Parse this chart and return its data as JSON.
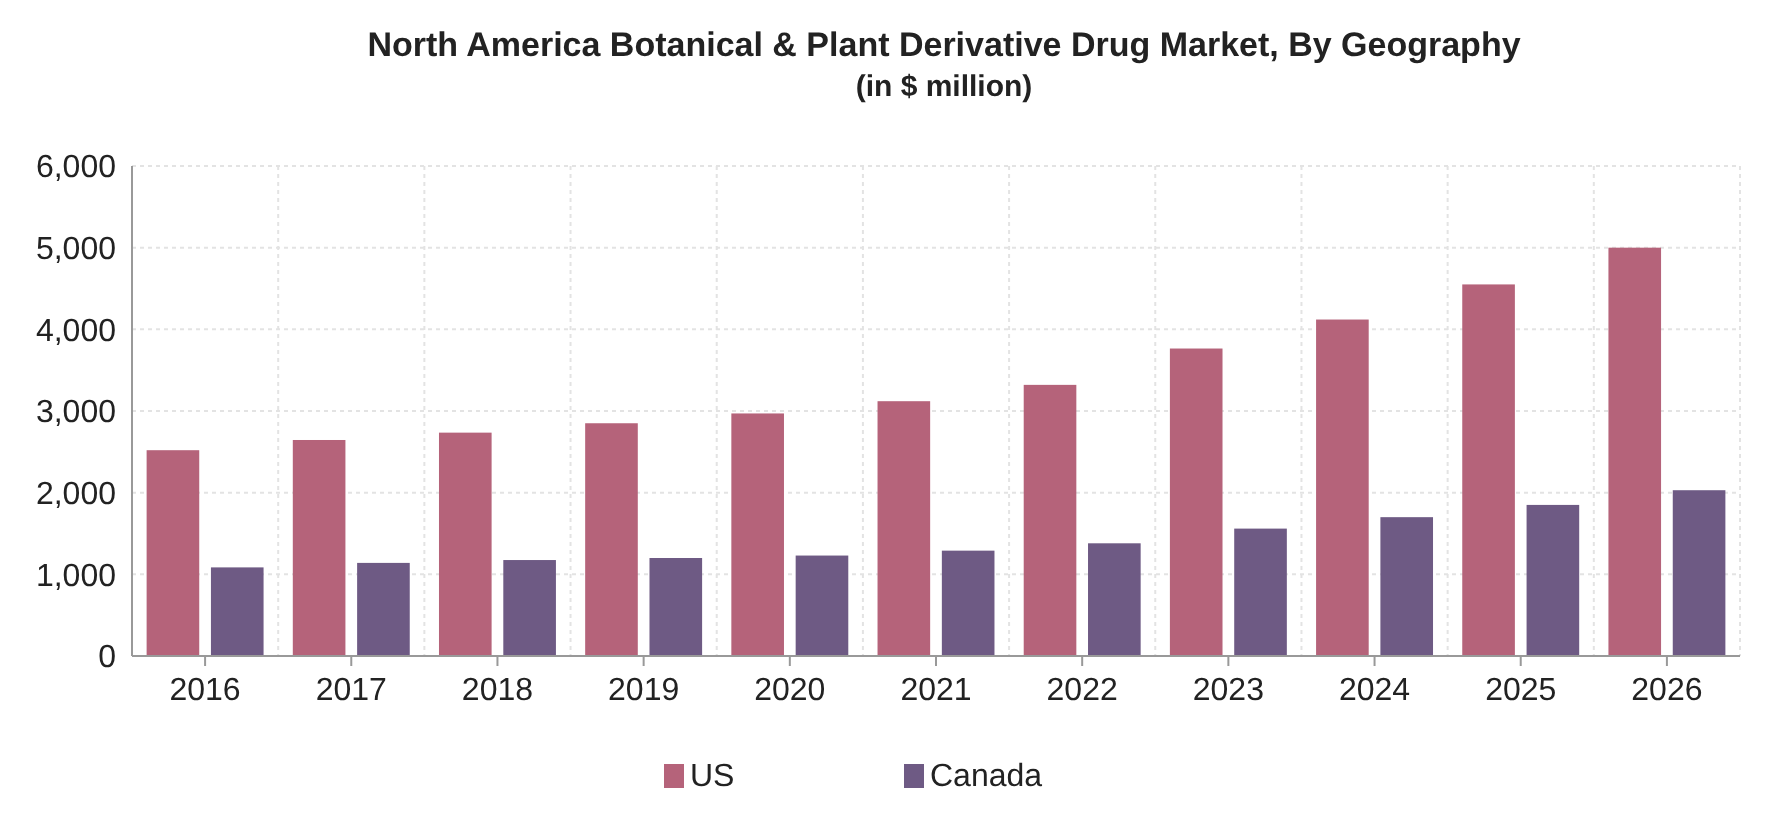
{
  "chart_data": {
    "type": "bar",
    "title": "North America Botanical & Plant Derivative Drug Market, By Geography",
    "subtitle": "(in $ million)",
    "categories": [
      "2016",
      "2017",
      "2018",
      "2019",
      "2020",
      "2021",
      "2022",
      "2023",
      "2024",
      "2025",
      "2026"
    ],
    "series": [
      {
        "name": "US",
        "color": "#b5637a",
        "values": [
          2520,
          2645,
          2735,
          2850,
          2970,
          3120,
          3320,
          3765,
          4120,
          4550,
          5000
        ]
      },
      {
        "name": "Canada",
        "color": "#6e5a84",
        "values": [
          1085,
          1140,
          1175,
          1200,
          1230,
          1290,
          1380,
          1560,
          1700,
          1850,
          2030
        ]
      }
    ],
    "ylim": [
      0,
      6000
    ],
    "yticks": [
      {
        "value": 0,
        "label": "0"
      },
      {
        "value": 1000,
        "label": "1,000"
      },
      {
        "value": 2000,
        "label": "2,000"
      },
      {
        "value": 3000,
        "label": "3,000"
      },
      {
        "value": 4000,
        "label": "4,000"
      },
      {
        "value": 5000,
        "label": "5,000"
      },
      {
        "value": 6000,
        "label": "6,000"
      }
    ],
    "grid": true,
    "legend": "bottom"
  }
}
